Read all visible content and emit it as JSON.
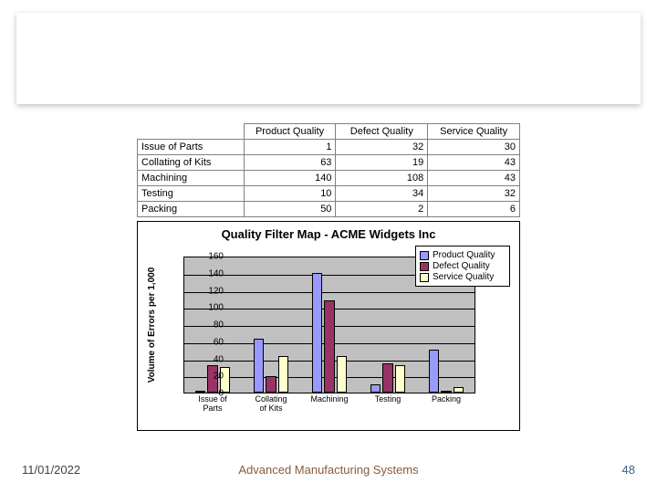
{
  "table": {
    "columns": [
      "Product Quality",
      "Defect Quality",
      "Service Quality"
    ],
    "rows": [
      {
        "label": "Issue of Parts",
        "values": [
          1,
          32,
          30
        ]
      },
      {
        "label": "Collating of Kits",
        "values": [
          63,
          19,
          43
        ]
      },
      {
        "label": "Machining",
        "values": [
          140,
          108,
          43
        ]
      },
      {
        "label": "Testing",
        "values": [
          10,
          34,
          32
        ]
      },
      {
        "label": "Packing",
        "values": [
          50,
          2,
          6
        ]
      }
    ]
  },
  "chart": {
    "type": "bar",
    "title": "Quality Filter Map - ACME Widgets Inc",
    "categories": [
      "Issue of Parts",
      "Collating of Kits",
      "Machining",
      "Testing",
      "Packing"
    ],
    "category_labels": [
      "Issue of\nParts",
      "Collating\nof Kits",
      "Machining",
      "Testing",
      "Packing"
    ],
    "series": [
      {
        "name": "Product Quality",
        "color": "#9999ff",
        "values": [
          1,
          63,
          140,
          10,
          50
        ]
      },
      {
        "name": "Defect Quality",
        "color": "#993366",
        "values": [
          32,
          19,
          108,
          34,
          2
        ]
      },
      {
        "name": "Service Quality",
        "color": "#ffffcc",
        "values": [
          30,
          43,
          43,
          32,
          6
        ]
      }
    ],
    "ylabel": "Volume of Errors per 1,000",
    "ylim": [
      0,
      160
    ],
    "ytick_step": 20,
    "plot_bg": "#c0c0c0",
    "grid_color": "#000000",
    "background_color": "#ffffff",
    "bar_border": "#000000",
    "title_fontsize": 13,
    "label_fontsize": 10
  },
  "footer": {
    "date": "11/01/2022",
    "center": "Advanced Manufacturing Systems",
    "page": "48"
  }
}
